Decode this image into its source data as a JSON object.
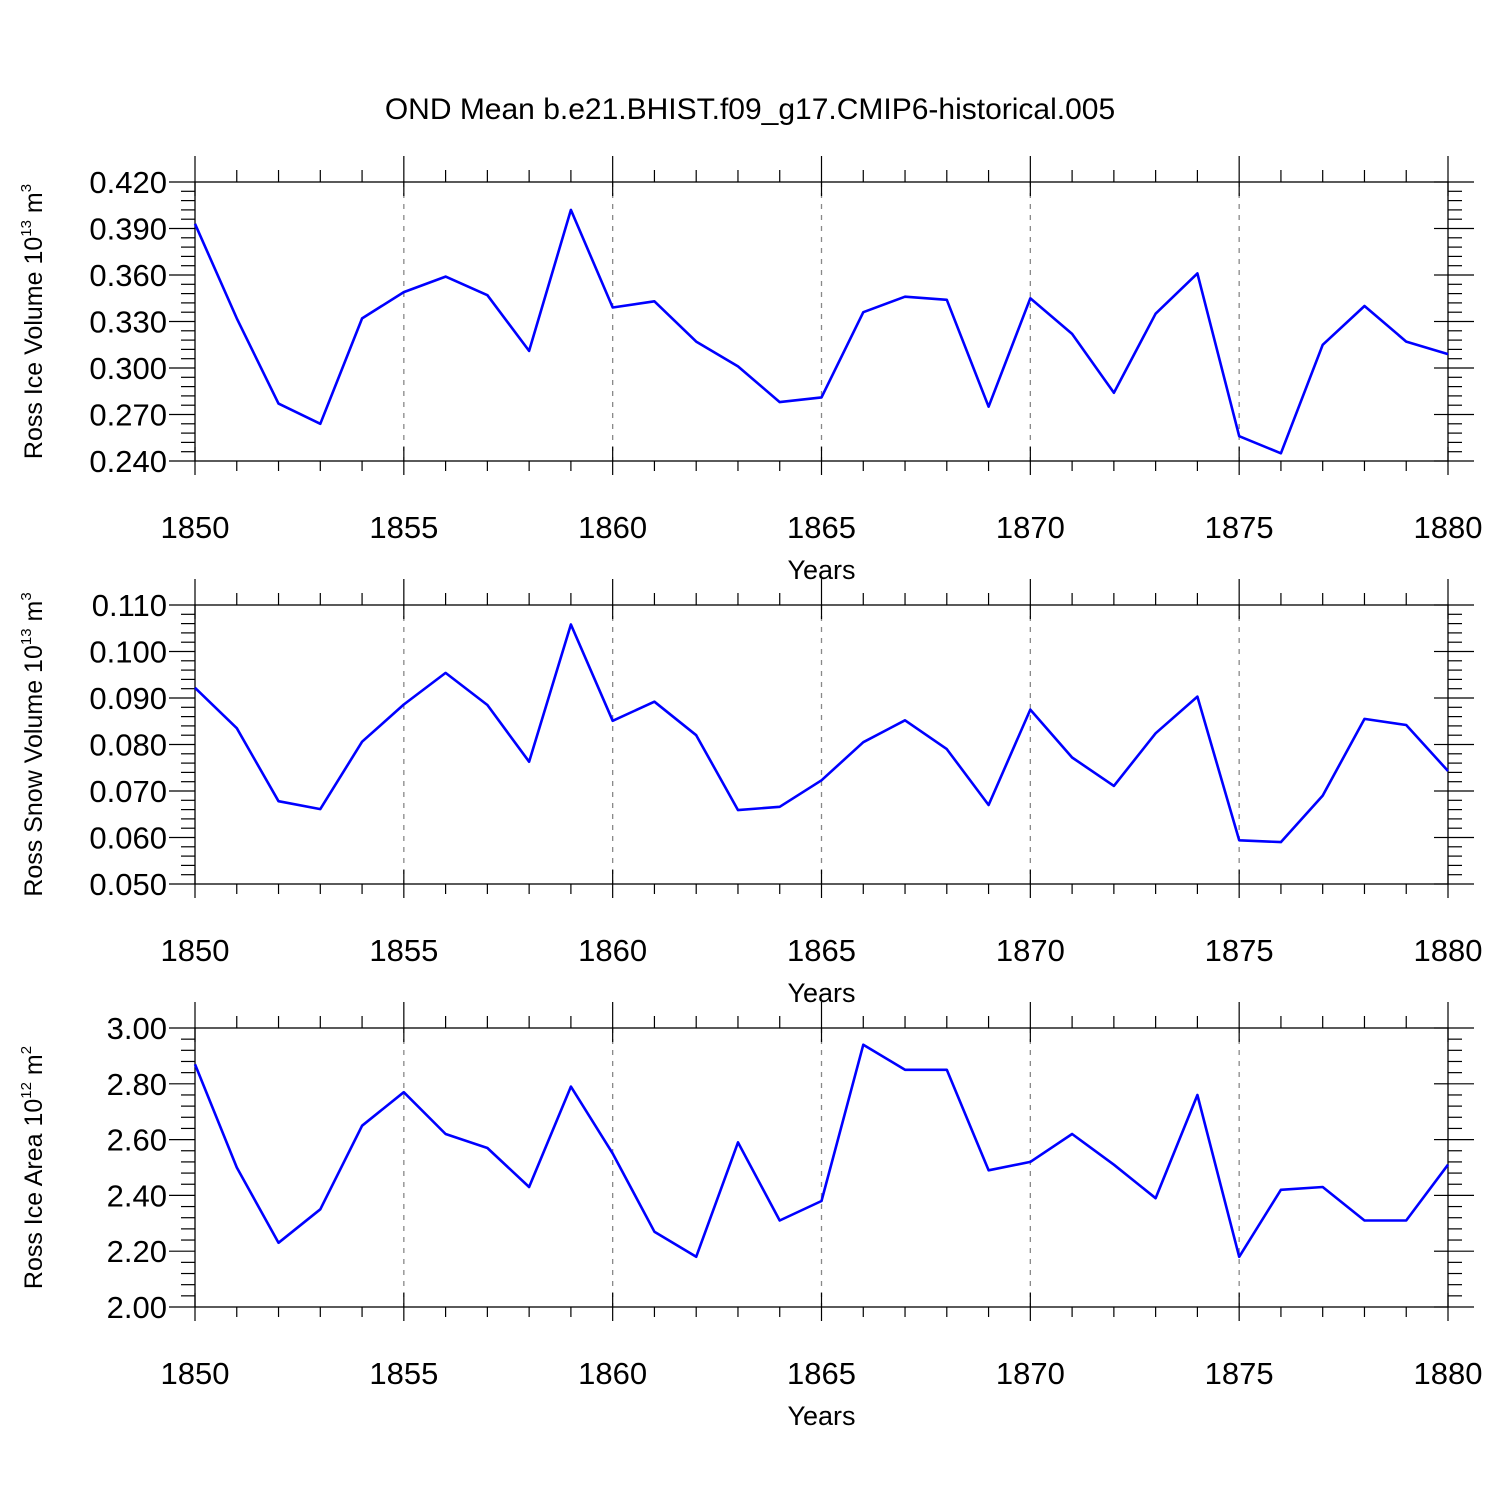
{
  "title": "OND Mean b.e21.BHIST.f09_g17.CMIP6-historical.005",
  "colors": {
    "series": "#0000ff",
    "axis": "#000000",
    "grid": "#888888"
  },
  "chart_data": [
    {
      "type": "line",
      "title": "OND Mean b.e21.BHIST.f09_g17.CMIP6-historical.005",
      "xlabel": "Years",
      "ylabel": {
        "main": "Ross Ice Volume 10",
        "exp": "13",
        "unit": " m",
        "unit_exp": "3"
      },
      "xlim": [
        1850,
        1880
      ],
      "ylim": [
        0.24,
        0.42
      ],
      "xticks": [
        "1850",
        "1855",
        "1860",
        "1865",
        "1870",
        "1875",
        "1880"
      ],
      "yticks": [
        "0.240",
        "0.270",
        "0.300",
        "0.330",
        "0.360",
        "0.390",
        "0.420"
      ],
      "grid": "dashed vertical at major x ticks",
      "x": [
        1850,
        1851,
        1852,
        1853,
        1854,
        1855,
        1856,
        1857,
        1858,
        1859,
        1860,
        1861,
        1862,
        1863,
        1864,
        1865,
        1866,
        1867,
        1868,
        1869,
        1870,
        1871,
        1872,
        1873,
        1874,
        1875,
        1876,
        1877,
        1878,
        1879,
        1880
      ],
      "series": [
        {
          "values": [
            0.393,
            0.332,
            0.277,
            0.264,
            0.332,
            0.349,
            0.359,
            0.347,
            0.311,
            0.402,
            0.339,
            0.343,
            0.317,
            0.301,
            0.278,
            0.281,
            0.336,
            0.346,
            0.344,
            0.275,
            0.345,
            0.322,
            0.284,
            0.335,
            0.361,
            0.256,
            0.245,
            0.315,
            0.34,
            0.317,
            0.309
          ]
        }
      ]
    },
    {
      "type": "line",
      "xlabel": "Years",
      "ylabel": {
        "main": "Ross Snow Volume 10",
        "exp": "13",
        "unit": " m",
        "unit_exp": "3"
      },
      "xlim": [
        1850,
        1880
      ],
      "ylim": [
        0.05,
        0.11
      ],
      "xticks": [
        "1850",
        "1855",
        "1860",
        "1865",
        "1870",
        "1875",
        "1880"
      ],
      "yticks": [
        "0.050",
        "0.060",
        "0.070",
        "0.080",
        "0.090",
        "0.100",
        "0.110"
      ],
      "grid": "dashed vertical at major x ticks",
      "x": [
        1850,
        1851,
        1852,
        1853,
        1854,
        1855,
        1856,
        1857,
        1858,
        1859,
        1860,
        1861,
        1862,
        1863,
        1864,
        1865,
        1866,
        1867,
        1868,
        1869,
        1870,
        1871,
        1872,
        1873,
        1874,
        1875,
        1876,
        1877,
        1878,
        1879,
        1880
      ],
      "series": [
        {
          "values": [
            0.0922,
            0.0835,
            0.0678,
            0.0661,
            0.0806,
            0.0886,
            0.0954,
            0.0885,
            0.0763,
            0.1058,
            0.0851,
            0.0892,
            0.082,
            0.0659,
            0.0666,
            0.0723,
            0.0805,
            0.0852,
            0.079,
            0.067,
            0.0875,
            0.0772,
            0.0711,
            0.0824,
            0.0903,
            0.0594,
            0.059,
            0.069,
            0.0855,
            0.0842,
            0.0743
          ]
        }
      ]
    },
    {
      "type": "line",
      "xlabel": "Years",
      "ylabel": {
        "main": "Ross Ice Area 10",
        "exp": "12",
        "unit": " m",
        "unit_exp": "2"
      },
      "xlim": [
        1850,
        1880
      ],
      "ylim": [
        2.0,
        3.0
      ],
      "xticks": [
        "1850",
        "1855",
        "1860",
        "1865",
        "1870",
        "1875",
        "1880"
      ],
      "yticks": [
        "2.00",
        "2.20",
        "2.40",
        "2.60",
        "2.80",
        "3.00"
      ],
      "grid": "dashed vertical at major x ticks",
      "x": [
        1850,
        1851,
        1852,
        1853,
        1854,
        1855,
        1856,
        1857,
        1858,
        1859,
        1860,
        1861,
        1862,
        1863,
        1864,
        1865,
        1866,
        1867,
        1868,
        1869,
        1870,
        1871,
        1872,
        1873,
        1874,
        1875,
        1876,
        1877,
        1878,
        1879,
        1880
      ],
      "series": [
        {
          "values": [
            2.87,
            2.5,
            2.23,
            2.35,
            2.65,
            2.77,
            2.62,
            2.57,
            2.43,
            2.79,
            2.55,
            2.27,
            2.18,
            2.59,
            2.31,
            2.38,
            2.94,
            2.85,
            2.85,
            2.49,
            2.52,
            2.62,
            2.51,
            2.39,
            2.76,
            2.18,
            2.42,
            2.43,
            2.31,
            2.31,
            2.51
          ]
        }
      ]
    }
  ]
}
